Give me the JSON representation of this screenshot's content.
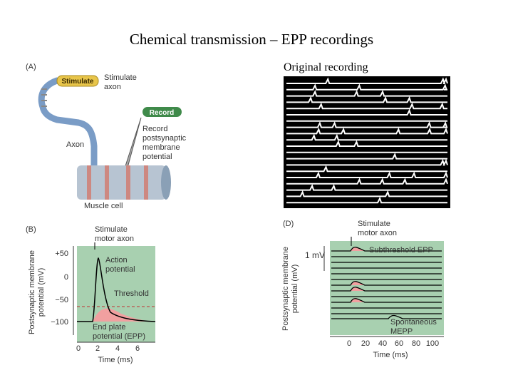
{
  "title": "Chemical transmission – EPP recordings",
  "panel_a": {
    "label": "(A)",
    "stimulate_button": "Stimulate",
    "stimulate_text": [
      "Stimulate",
      "axon"
    ],
    "record_button": "Record",
    "record_text": [
      "Record",
      "postsynaptic",
      "membrane",
      "potential"
    ],
    "axon": "Axon",
    "muscle_cell": "Muscle cell"
  },
  "panel_c": {
    "caption": "Original recording"
  },
  "panel_b": {
    "label": "(B)",
    "stimulate_text": [
      "Stimulate",
      "motor axon"
    ],
    "y_label": [
      "Postsynaptic membrane",
      "potential (mV)"
    ],
    "y_ticks": [
      "+50",
      0,
      "−50",
      "−100"
    ],
    "x_ticks": [
      0,
      2,
      4,
      6
    ],
    "x_label": "Time (ms)",
    "action_potential": [
      "Action",
      "potential"
    ],
    "threshold": "Threshold",
    "epp": [
      "End plate",
      "potential (EPP)"
    ]
  },
  "panel_d": {
    "label": "(D)",
    "stimulate_text": [
      "Stimulate",
      "motor axon"
    ],
    "scale": "1 mV",
    "subthreshold": "Subthreshold EPP",
    "mepp": [
      "Spontaneous",
      "MEPP"
    ],
    "y_label": [
      "Postsynaptic membrane",
      "potential (mV)"
    ],
    "x_ticks": [
      0,
      20,
      40,
      60,
      80,
      100
    ],
    "x_label": "Time (ms)"
  }
}
